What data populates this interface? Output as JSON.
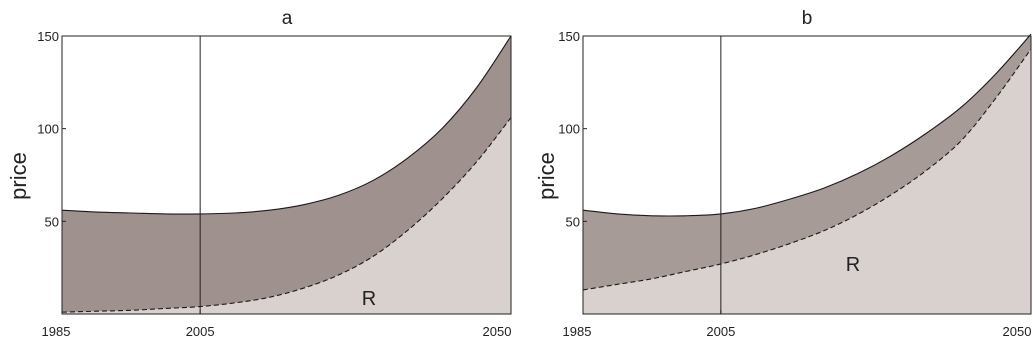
{
  "chart_data": [
    {
      "type": "area",
      "title": "a",
      "xlabel": "",
      "ylabel": "price",
      "xlim": [
        1985,
        2050
      ],
      "ylim": [
        0,
        150
      ],
      "xticks": [
        "1985",
        "2005",
        "2050"
      ],
      "yticks": [
        "50",
        "100",
        "150"
      ],
      "marker_year": 2005,
      "region_label": "R",
      "colors": {
        "upper_band": "#9f918d",
        "lower_region": "#d9d1ce",
        "line": "#1a1a1a"
      },
      "series": [
        {
          "style": "solid",
          "x": [
            1985,
            1990,
            1995,
            2000,
            2005,
            2010,
            2015,
            2020,
            2025,
            2030,
            2035,
            2040,
            2045,
            2050
          ],
          "values": [
            56,
            55,
            54.5,
            54,
            54,
            54.5,
            56,
            59,
            64,
            72,
            84,
            100,
            122,
            150
          ]
        },
        {
          "style": "dashed",
          "x": [
            1985,
            1990,
            1995,
            2000,
            2005,
            2010,
            2015,
            2020,
            2025,
            2030,
            2035,
            2040,
            2045,
            2050
          ],
          "values": [
            1,
            1.5,
            2,
            3,
            4,
            6,
            9,
            14,
            21,
            31,
            45,
            62,
            82,
            106
          ]
        }
      ]
    },
    {
      "type": "area",
      "title": "b",
      "xlabel": "",
      "ylabel": "price",
      "xlim": [
        1985,
        2050
      ],
      "ylim": [
        0,
        150
      ],
      "xticks": [
        "1985",
        "2005",
        "2050"
      ],
      "yticks": [
        "50",
        "100",
        "150"
      ],
      "marker_year": 2005,
      "region_label": "R",
      "colors": {
        "upper_band": "#a69b97",
        "lower_region": "#d9d1ce",
        "line": "#1a1a1a"
      },
      "series": [
        {
          "style": "solid",
          "x": [
            1985,
            1990,
            1995,
            2000,
            2005,
            2010,
            2015,
            2020,
            2025,
            2030,
            2035,
            2040,
            2045,
            2050
          ],
          "values": [
            56,
            54,
            53,
            53,
            54,
            57,
            62,
            68,
            76,
            86,
            98,
            112,
            130,
            151
          ]
        },
        {
          "style": "dashed",
          "x": [
            1985,
            1990,
            1995,
            2000,
            2005,
            2010,
            2015,
            2020,
            2025,
            2030,
            2035,
            2040,
            2045,
            2050
          ],
          "values": [
            13,
            16,
            19,
            23,
            27,
            32,
            38,
            45,
            54,
            65,
            78,
            94,
            117,
            143
          ]
        }
      ]
    }
  ]
}
